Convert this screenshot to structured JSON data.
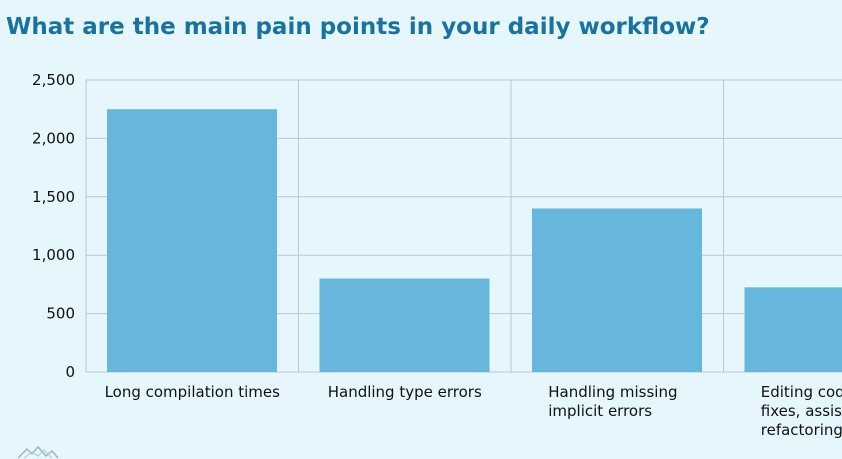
{
  "title": "What are the main pain points in your daily workflow?",
  "colors": {
    "title": "#1a72a0",
    "bar": "#67b7dc",
    "grid": "#b7c9d0",
    "background": "#e5f6fc"
  },
  "chart_data": {
    "type": "bar",
    "title": "What are the main pain points in your daily workflow?",
    "categories": [
      [
        "Long compilation times"
      ],
      [
        "Handling type errors"
      ],
      [
        "Handling missing",
        "implicit errors"
      ],
      [
        "Editing code",
        "fixes, assists,",
        "refactoring"
      ]
    ],
    "values": [
      2250,
      800,
      1400,
      725
    ],
    "yticks": [
      "0",
      "500",
      "1,000",
      "1,500",
      "2,000",
      "2,500"
    ],
    "ylim": [
      0,
      2500
    ],
    "grid": true,
    "xlabel": "",
    "ylabel": ""
  }
}
